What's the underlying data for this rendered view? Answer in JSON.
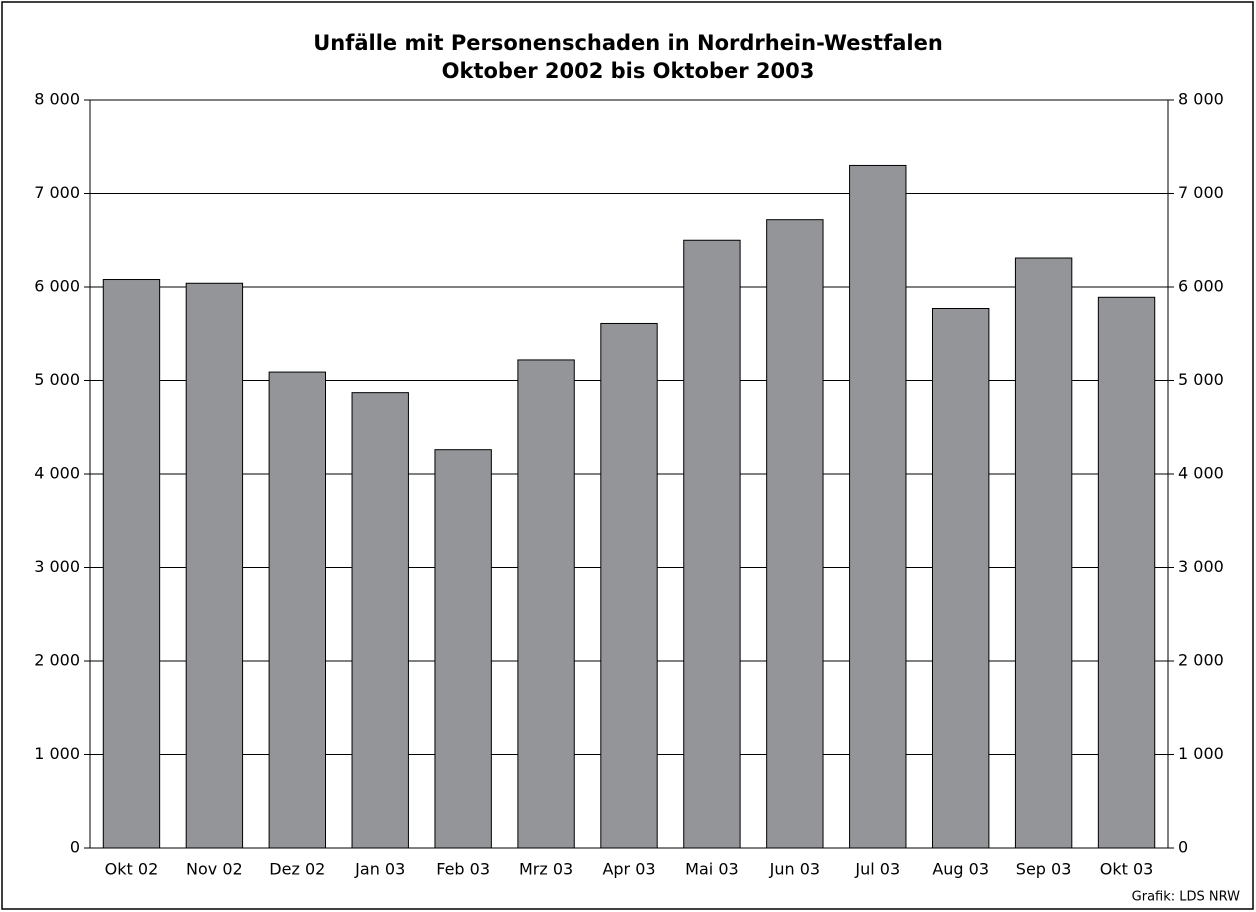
{
  "chart_data": {
    "type": "bar",
    "title": "Unfälle mit Personenschaden in Nordrhein-Westfalen",
    "subtitle": "Oktober 2002 bis Oktober 2003",
    "source": "Grafik: LDS NRW",
    "categories": [
      "Okt 02",
      "Nov 02",
      "Dez 02",
      "Jan 03",
      "Feb 03",
      "Mrz 03",
      "Apr 03",
      "Mai 03",
      "Jun 03",
      "Jul 03",
      "Aug 03",
      "Sep 03",
      "Okt 03"
    ],
    "values": [
      6080,
      6040,
      5090,
      4870,
      4260,
      5220,
      5610,
      6500,
      6720,
      7300,
      5770,
      6310,
      5890
    ],
    "color": "#939598",
    "ylim": [
      0,
      8000
    ],
    "yticks": [
      0,
      {
        "value": 1000,
        "label": "1 000"
      },
      {
        "value": 2000,
        "label": "2 000"
      },
      {
        "value": 3000,
        "label": "3 000"
      },
      {
        "value": 4000,
        "label": "4 000"
      },
      {
        "value": 5000,
        "label": "5 000"
      },
      {
        "value": 6000,
        "label": "6 000"
      },
      {
        "value": 7000,
        "label": "7 000"
      },
      {
        "value": 8000,
        "label": "8 000"
      }
    ],
    "grid": true
  }
}
